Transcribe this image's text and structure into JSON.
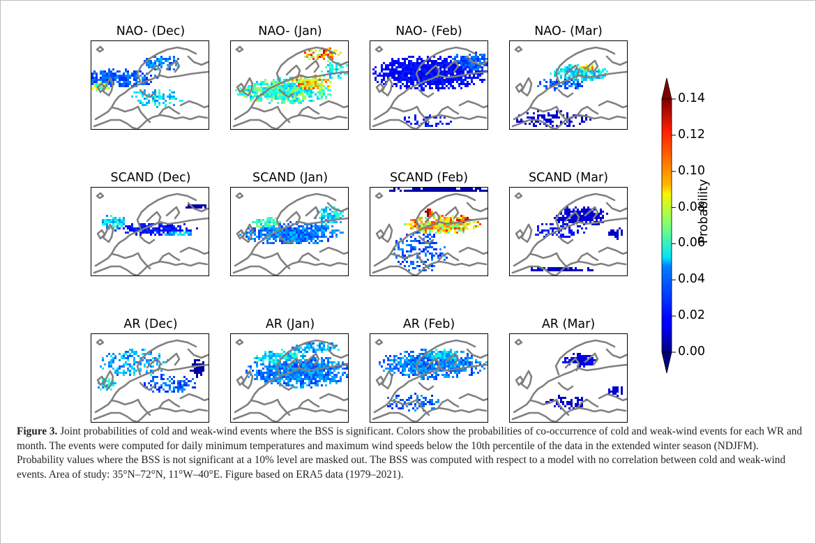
{
  "figure": {
    "panel_titles": [
      [
        "NAO- (Dec)",
        "NAO- (Jan)",
        "NAO- (Feb)",
        "NAO- (Mar)"
      ],
      [
        "SCAND (Dec)",
        "SCAND (Jan)",
        "SCAND (Feb)",
        "SCAND (Mar)"
      ],
      [
        "AR (Dec)",
        "AR (Jan)",
        "AR (Feb)",
        "AR (Mar)"
      ]
    ],
    "colorbar": {
      "label": "Probability",
      "ticks": [
        "0.14",
        "0.12",
        "0.10",
        "0.08",
        "0.06",
        "0.04",
        "0.02",
        "0.00"
      ],
      "tick_values": [
        0.14,
        0.12,
        0.1,
        0.08,
        0.06,
        0.04,
        0.02,
        0.0
      ],
      "range": [
        0.0,
        0.14
      ],
      "colormap": "jet",
      "extend": "both"
    },
    "coastline_color": "#808080",
    "map_area": "35°N–72°N, 11°W–40°E"
  },
  "caption": {
    "label": "Figure 3.",
    "text": "Joint probabilities of cold and weak-wind events where the BSS is significant. Colors show the probabilities of co-occurrence of cold and weak-wind events for each WR and month. The events were computed for daily minimum temperatures and maximum wind speeds below the 10th percentile of the data in the extended winter season (NDJFM). Probability values where the BSS is not significant at a 10% level are masked out. The BSS was computed with respect to a model with no correlation between cold and weak-wind events. Area of study: 35°N–72°N, 11°W–40°E. Figure based on ERA5 data (1979–2021)."
  }
}
